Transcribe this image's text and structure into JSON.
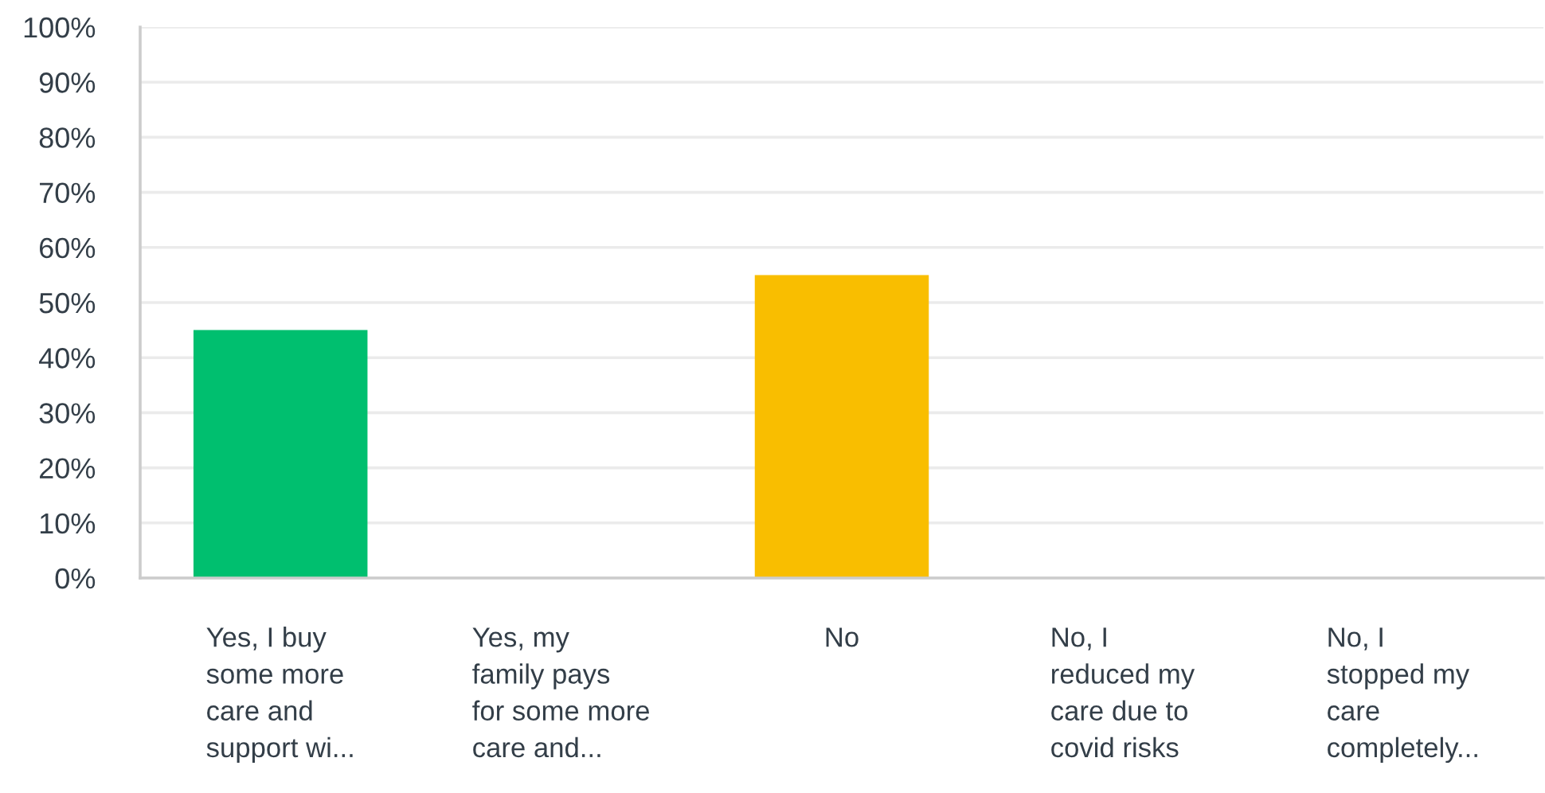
{
  "chart_data": {
    "type": "bar",
    "categories": [
      "Yes, I buy\nsome more\ncare and\nsupport wi...",
      "Yes, my\nfamily pays\nfor some more\ncare and...",
      "No",
      "No, I\nreduced my\ncare due to\ncovid risks",
      "No, I\nstopped my\ncare\ncompletely..."
    ],
    "values": [
      45,
      0,
      55,
      0,
      0
    ],
    "colors": [
      "#00bf6f",
      "#507cb6",
      "#f9be00",
      "#6bc8cd",
      "#ff8b4f"
    ],
    "ylim": [
      0,
      100
    ],
    "yticks": [
      {
        "value": 0,
        "label": "0%"
      },
      {
        "value": 10,
        "label": "10%"
      },
      {
        "value": 20,
        "label": "20%"
      },
      {
        "value": 30,
        "label": "30%"
      },
      {
        "value": 40,
        "label": "40%"
      },
      {
        "value": 50,
        "label": "50%"
      },
      {
        "value": 60,
        "label": "60%"
      },
      {
        "value": 70,
        "label": "70%"
      },
      {
        "value": 80,
        "label": "80%"
      },
      {
        "value": 90,
        "label": "90%"
      },
      {
        "value": 100,
        "label": "100%"
      }
    ],
    "grid": "y"
  }
}
